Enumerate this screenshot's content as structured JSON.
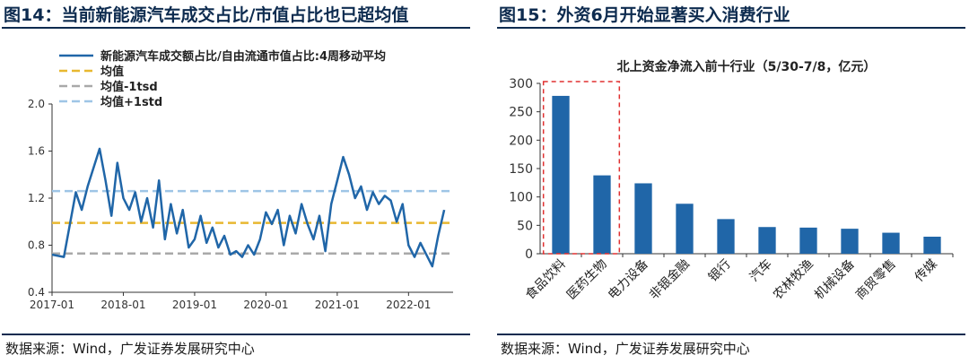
{
  "colors": {
    "title_color": "#0d2b4f",
    "series_line": "#2066a8",
    "mean_line": "#e8b830",
    "lower_band": "#a9a9a9",
    "upper_band": "#9ec5e6",
    "bar_color": "#2066a8",
    "highlight_box": "#e03030"
  },
  "left_panel": {
    "figure_title": "图14：当前新能源汽车成交占比/市值占比也已超均值",
    "source": "数据来源：Wind，广发证券发展研究中心"
  },
  "right_panel": {
    "figure_title": "图15：外资6月开始显著买入消费行业",
    "source": "数据来源：Wind，广发证券发展研究中心"
  },
  "chart_data": [
    {
      "type": "line",
      "title": "",
      "legend_position": "top-left",
      "ylim": [
        0.4,
        2.0
      ],
      "yticks": [
        "0.4",
        "0.8",
        "1.2",
        "1.6",
        "2.0"
      ],
      "xticks": [
        "2017-01",
        "2018-01",
        "2019-01",
        "2020-01",
        "2021-01",
        "2022-01"
      ],
      "series": [
        {
          "name": "新能源汽车成交额占比/自由流通市值占比:4周移动平均",
          "style": "solid",
          "x": [
            "2017-01",
            "2017-03",
            "2017-05",
            "2017-06",
            "2017-07",
            "2017-09",
            "2017-10",
            "2017-11",
            "2017-12",
            "2018-01",
            "2018-02",
            "2018-03",
            "2018-04",
            "2018-05",
            "2018-06",
            "2018-07",
            "2018-08",
            "2018-09",
            "2018-10",
            "2018-11",
            "2018-12",
            "2019-01",
            "2019-02",
            "2019-03",
            "2019-04",
            "2019-05",
            "2019-06",
            "2019-07",
            "2019-08",
            "2019-09",
            "2019-10",
            "2019-11",
            "2019-12",
            "2020-01",
            "2020-02",
            "2020-03",
            "2020-04",
            "2020-05",
            "2020-06",
            "2020-07",
            "2020-08",
            "2020-09",
            "2020-10",
            "2020-11",
            "2020-12",
            "2021-01",
            "2021-02",
            "2021-03",
            "2021-04",
            "2021-05",
            "2021-06",
            "2021-07",
            "2021-08",
            "2021-09",
            "2021-10",
            "2021-11",
            "2021-12",
            "2022-01",
            "2022-02",
            "2022-03",
            "2022-04",
            "2022-05",
            "2022-06",
            "2022-07"
          ],
          "values": [
            0.72,
            0.7,
            1.25,
            1.1,
            1.3,
            1.62,
            1.35,
            1.05,
            1.5,
            1.2,
            1.1,
            1.25,
            1.0,
            1.2,
            0.95,
            1.35,
            0.85,
            1.15,
            0.9,
            1.1,
            0.78,
            0.85,
            1.05,
            0.82,
            0.95,
            0.78,
            0.88,
            0.72,
            0.75,
            0.7,
            0.8,
            0.72,
            0.85,
            1.08,
            0.98,
            1.1,
            0.8,
            1.05,
            0.9,
            1.15,
            0.98,
            0.85,
            1.05,
            0.75,
            1.15,
            1.35,
            1.55,
            1.4,
            1.2,
            1.3,
            1.1,
            1.25,
            1.15,
            1.22,
            1.18,
            1.0,
            1.15,
            0.8,
            0.7,
            0.82,
            0.72,
            0.62,
            0.88,
            1.1
          ]
        },
        {
          "name": "均值",
          "style": "dashed",
          "value": 0.99
        },
        {
          "name": "均值-1tsd",
          "style": "dashed",
          "value": 0.73
        },
        {
          "name": "均值+1std",
          "style": "dashed",
          "value": 1.26
        }
      ]
    },
    {
      "type": "bar",
      "title": "北上资金净流入前十行业（5/30-7/8，亿元）",
      "ylim": [
        0,
        300
      ],
      "yticks": [
        "0",
        "50",
        "100",
        "150",
        "200",
        "250",
        "300"
      ],
      "categories": [
        "食品饮料",
        "医药生物",
        "电力设备",
        "非银金融",
        "银行",
        "汽车",
        "农林牧渔",
        "机械设备",
        "商贸零售",
        "传媒"
      ],
      "values": [
        278,
        138,
        124,
        88,
        61,
        47,
        46,
        44,
        37,
        30
      ],
      "highlighted": [
        "食品饮料",
        "医药生物"
      ]
    }
  ]
}
